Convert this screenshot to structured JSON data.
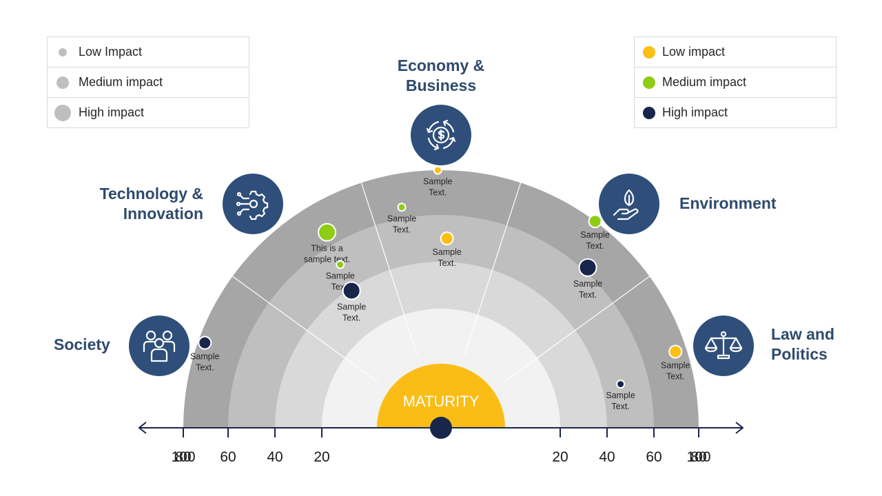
{
  "legend_size": {
    "items": [
      {
        "label": "Low Impact",
        "color": "#bfbfbf"
      },
      {
        "label": "Medium impact",
        "color": "#bfbfbf"
      },
      {
        "label": "High impact",
        "color": "#bfbfbf"
      }
    ]
  },
  "legend_color": {
    "items": [
      {
        "label": "Low impact",
        "color": "#fbbf16"
      },
      {
        "label": "Medium impact",
        "color": "#8fcc14"
      },
      {
        "label": "High impact",
        "color": "#17264a"
      }
    ]
  },
  "categories": {
    "society": {
      "title": "Society",
      "icon": "people-icon"
    },
    "technology": {
      "title_line1": "Technology &",
      "title_line2": "Innovation",
      "icon": "chip-gear-icon"
    },
    "economy": {
      "title_line1": "Economy &",
      "title_line2": "Business",
      "icon": "dollar-cycle-icon"
    },
    "environment": {
      "title": "Environment",
      "icon": "hand-leaf-icon"
    },
    "law": {
      "title_line1": "Law and",
      "title_line2": "Politics",
      "icon": "scales-icon"
    }
  },
  "colors": {
    "navy": "#2f4f7a",
    "title": "#2f4a6d",
    "low": "#fbbf16",
    "medium": "#8fcc14",
    "high": "#17264a",
    "center": "#f9bd16",
    "ring_outer": "#a6a6a6",
    "ring_2": "#bfbfbf",
    "ring_3": "#d9d9d9",
    "ring_inner": "#f2f2f2"
  },
  "center_label": "MATURITY",
  "chart_data": {
    "type": "radial-semicircle",
    "axis_ticks_left": [
      "100",
      "80",
      "60",
      "40",
      "20"
    ],
    "axis_ticks_right": [
      "20",
      "40",
      "60",
      "80",
      "100"
    ],
    "axis_range": [
      0,
      100
    ],
    "sectors": [
      "Society",
      "Technology & Innovation",
      "Economy & Business",
      "Environment",
      "Law and Politics"
    ],
    "points": [
      {
        "label": "Sample Text.",
        "sector": "Society",
        "maturity": 77,
        "impact": "high",
        "size": "medium"
      },
      {
        "label": "This is a sample text.",
        "sector": "Technology & Innovation",
        "maturity": 66,
        "impact": "medium",
        "size": "high"
      },
      {
        "label": "Sample Text.",
        "sector": "Technology & Innovation",
        "maturity": 51,
        "impact": "medium",
        "size": "low"
      },
      {
        "label": "Sample Text.",
        "sector": "Technology & Innovation",
        "maturity": 39,
        "impact": "high",
        "size": "high"
      },
      {
        "label": "Sample Text.",
        "sector": "Economy & Business",
        "maturity": 83,
        "impact": "low",
        "size": "low"
      },
      {
        "label": "Sample Text.",
        "sector": "Economy & Business",
        "maturity": 65,
        "impact": "medium",
        "size": "low"
      },
      {
        "label": "Sample Text.",
        "sector": "Economy & Business",
        "maturity": 50,
        "impact": "low",
        "size": "medium"
      },
      {
        "label": "Sample Text.",
        "sector": "Environment",
        "maturity": 81,
        "impact": "medium",
        "size": "medium"
      },
      {
        "label": "Sample Text.",
        "sector": "Environment",
        "maturity": 62,
        "impact": "high",
        "size": "high"
      },
      {
        "label": "Sample Text.",
        "sector": "Law and Politics",
        "maturity": 75,
        "impact": "low",
        "size": "medium"
      },
      {
        "label": "Sample Text.",
        "sector": "Law and Politics",
        "maturity": 48,
        "impact": "high",
        "size": "low"
      }
    ]
  }
}
